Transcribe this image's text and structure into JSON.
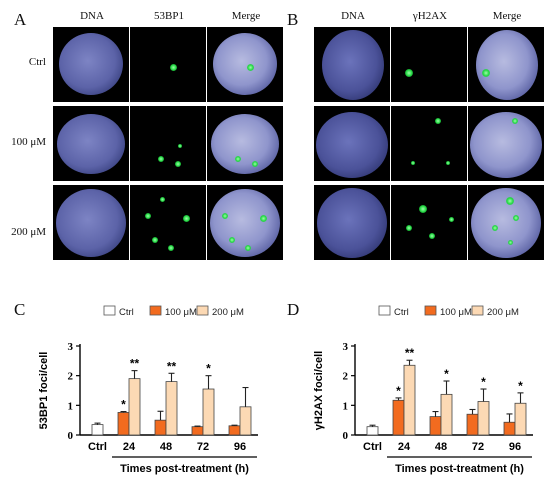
{
  "panels": {
    "A": {
      "letter": "A",
      "columns": [
        "DNA",
        "53BP1",
        "Merge"
      ],
      "rows": [
        "Ctrl",
        "100 μM",
        "200 μM"
      ]
    },
    "B": {
      "letter": "B",
      "columns": [
        "DNA",
        "γH2AX",
        "Merge"
      ]
    },
    "C": {
      "letter": "C"
    },
    "D": {
      "letter": "D"
    }
  },
  "colors": {
    "ctrl": "#ffffff",
    "c100": "#f26b1f",
    "c200": "#fcd9b4",
    "nucleus": "#5c63a8",
    "foci": "#20d640"
  },
  "chart_data": [
    {
      "type": "bar",
      "panel": "C",
      "ylabel": "53BP1 foci/cell",
      "xlabel": "Times post-treatment (h)",
      "ylim": [
        0,
        3
      ],
      "yticks": [
        0,
        1,
        2,
        3
      ],
      "legend": [
        "Ctrl",
        "100 μM",
        "200 μM"
      ],
      "legend_position": "top",
      "control": {
        "label": "Ctrl",
        "value": 0.35,
        "err": 0.05
      },
      "categories": [
        "24",
        "48",
        "72",
        "96"
      ],
      "series": [
        {
          "name": "100 μM",
          "values": [
            0.76,
            0.5,
            0.28,
            0.31
          ],
          "err": [
            0.03,
            0.3,
            0.02,
            0.02
          ],
          "sig": [
            "*",
            "",
            "",
            ""
          ]
        },
        {
          "name": "200 μM",
          "values": [
            1.9,
            1.8,
            1.55,
            0.95
          ],
          "err": [
            0.27,
            0.28,
            0.45,
            0.65
          ],
          "sig": [
            "**",
            "**",
            "*",
            ""
          ]
        }
      ]
    },
    {
      "type": "bar",
      "panel": "D",
      "ylabel": "γH2AX foci/cell",
      "xlabel": "Times post-treatment (h)",
      "ylim": [
        0,
        3
      ],
      "yticks": [
        0,
        1,
        2,
        3
      ],
      "legend": [
        "Ctrl",
        "100 μM",
        "200 μM"
      ],
      "legend_position": "top",
      "control": {
        "label": "Ctrl",
        "value": 0.28,
        "err": 0.05
      },
      "categories": [
        "24",
        "48",
        "72",
        "96"
      ],
      "series": [
        {
          "name": "100 μM",
          "values": [
            1.17,
            0.62,
            0.7,
            0.43
          ],
          "err": [
            0.08,
            0.17,
            0.16,
            0.28
          ],
          "sig": [
            "*",
            "",
            "",
            ""
          ]
        },
        {
          "name": "200 μM",
          "values": [
            2.35,
            1.37,
            1.13,
            1.07
          ],
          "err": [
            0.17,
            0.45,
            0.42,
            0.35
          ],
          "sig": [
            "**",
            "*",
            "*",
            "*"
          ]
        }
      ]
    }
  ]
}
